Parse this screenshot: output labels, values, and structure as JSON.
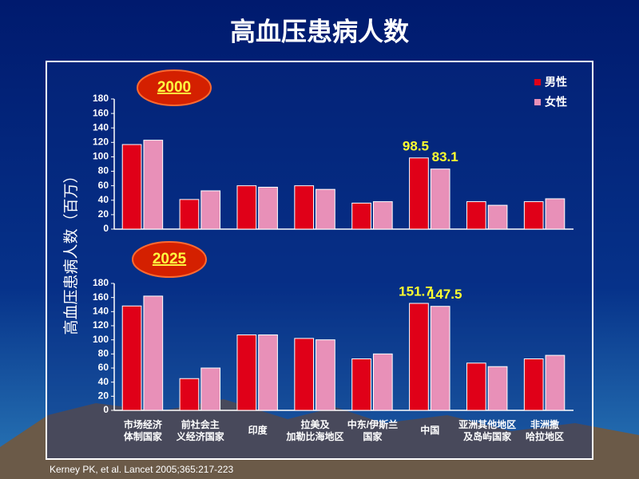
{
  "title": "高血压患病人数",
  "y_label": "高血压患病人数（百万）",
  "source": "Kerney PK, et al. Lancet 2005;365:217-223",
  "chart_data": [
    {
      "type": "bar",
      "title": "2000",
      "categories": [
        null,
        null,
        null,
        null,
        null,
        null,
        null,
        null
      ],
      "series": [
        {
          "name": "男性",
          "color": "#e00018",
          "values": [
            117,
            41,
            60,
            60,
            36,
            98.5,
            38,
            38
          ],
          "value_labels": [
            null,
            null,
            null,
            null,
            null,
            "98.5",
            null,
            null
          ]
        },
        {
          "name": "女性",
          "color": "#e890b8",
          "values": [
            123,
            53,
            58,
            55,
            38,
            83.1,
            33,
            42
          ],
          "value_labels": [
            null,
            null,
            null,
            null,
            null,
            "83.1",
            null,
            null
          ]
        }
      ],
      "ylim": [
        0,
        180
      ],
      "yticks": [
        0,
        20,
        40,
        60,
        80,
        100,
        120,
        140,
        160,
        180
      ],
      "grid": false
    },
    {
      "type": "bar",
      "title": "2025",
      "categories": [
        "市场经济\n体制国家",
        "前社会主\n义经济国家",
        "印度",
        "拉美及\n加勒比海地区",
        "中东/伊斯兰\n国家",
        "中国",
        "亚洲其他地区\n及岛屿国家",
        "非洲撒\n哈拉地区"
      ],
      "series": [
        {
          "name": "男性",
          "color": "#e00018",
          "values": [
            148,
            45,
            107,
            102,
            73,
            151.7,
            67,
            73
          ],
          "value_labels": [
            null,
            null,
            null,
            null,
            null,
            "151.7",
            null,
            null
          ]
        },
        {
          "name": "女性",
          "color": "#e890b8",
          "values": [
            162,
            60,
            107,
            100,
            80,
            147.5,
            62,
            78
          ],
          "value_labels": [
            null,
            null,
            null,
            null,
            null,
            "147.5",
            null,
            null
          ]
        }
      ],
      "ylim": [
        0,
        180
      ],
      "yticks": [
        0,
        20,
        40,
        60,
        80,
        100,
        120,
        140,
        160,
        180
      ],
      "grid": false
    }
  ]
}
